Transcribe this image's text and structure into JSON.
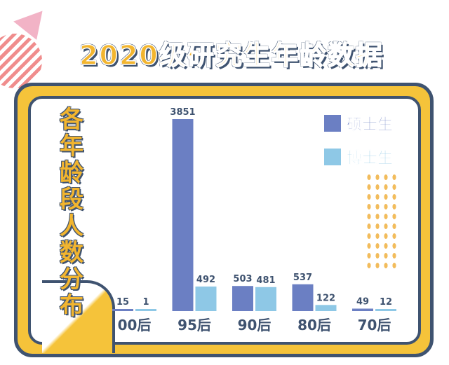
{
  "title": "2020级研究生年龄数据",
  "side_title": [
    "各",
    "年",
    "龄",
    "段",
    "人",
    "数",
    "分",
    "布"
  ],
  "colors": {
    "master": "#6b7fc3",
    "phd": "#8ec8e6",
    "frame": "#f5c33a",
    "outline": "#3f5370"
  },
  "chart_data": {
    "type": "bar",
    "title": "2020级研究生年龄数据",
    "subtitle": "各年龄段人数分布",
    "categories": [
      "00后",
      "95后",
      "90后",
      "80后",
      "70后"
    ],
    "series": [
      {
        "name": "硕士生",
        "values": [
          15,
          3851,
          503,
          537,
          49
        ]
      },
      {
        "name": "博士生",
        "values": [
          1,
          492,
          481,
          122,
          12
        ]
      }
    ],
    "ylim": [
      0,
      3851
    ],
    "grid": false,
    "legend": "top-right"
  }
}
